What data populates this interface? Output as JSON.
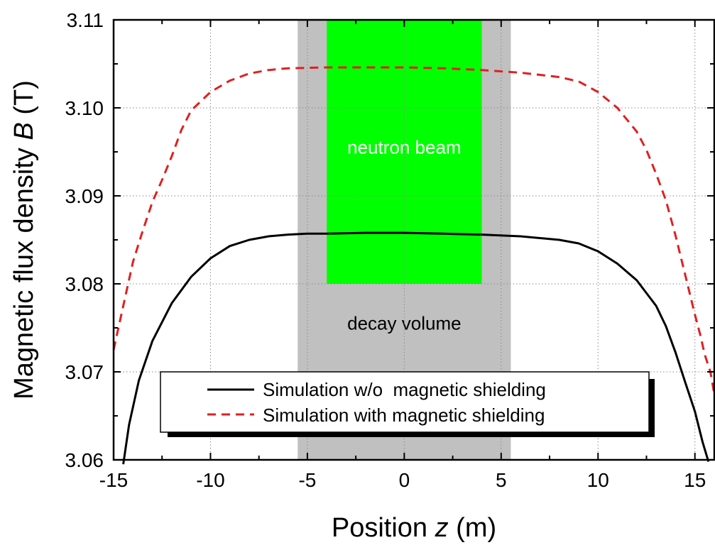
{
  "chart_data": {
    "type": "line",
    "title": "",
    "xlabel_main": "Position ",
    "xlabel_var": "z",
    "xlabel_unit": " (m)",
    "ylabel_main": "Magnetic flux density ",
    "ylabel_var": "B",
    "ylabel_unit": " (T)",
    "xlim": [
      -15,
      16
    ],
    "ylim": [
      3.06,
      3.11
    ],
    "xticks": [
      -15,
      -10,
      -5,
      0,
      5,
      10,
      15
    ],
    "yticks": [
      3.06,
      3.07,
      3.08,
      3.09,
      3.1,
      3.11
    ],
    "ytick_labels": [
      "3.06",
      "3.07",
      "3.08",
      "3.09",
      "3.10",
      "3.11"
    ],
    "grid": true,
    "regions": [
      {
        "name": "decay volume",
        "label": "decay volume",
        "x_range": [
          -5.5,
          5.5
        ],
        "y_range": [
          3.06,
          3.11
        ],
        "color": "#c0c0c0"
      },
      {
        "name": "neutron beam",
        "label": "neutron beam",
        "x_range": [
          -4,
          4
        ],
        "y_range": [
          3.08,
          3.11
        ],
        "color": "#00ff00",
        "label_color": "#ffffff"
      }
    ],
    "series": [
      {
        "name": "Simulation w/o  magnetic shielding",
        "color": "#000000",
        "style": "solid",
        "points": [
          [
            -14.5,
            3.0595
          ],
          [
            -14.2,
            3.064
          ],
          [
            -13.7,
            3.069
          ],
          [
            -13,
            3.0735
          ],
          [
            -12,
            3.0778
          ],
          [
            -11,
            3.0808
          ],
          [
            -10,
            3.0829
          ],
          [
            -9,
            3.0843
          ],
          [
            -8,
            3.085
          ],
          [
            -7,
            3.0854
          ],
          [
            -6,
            3.0856
          ],
          [
            -5,
            3.0857
          ],
          [
            -4,
            3.0857
          ],
          [
            -2,
            3.0858
          ],
          [
            0,
            3.0858
          ],
          [
            2,
            3.0857
          ],
          [
            4,
            3.0856
          ],
          [
            6,
            3.0854
          ],
          [
            8,
            3.085
          ],
          [
            9,
            3.0846
          ],
          [
            10,
            3.0837
          ],
          [
            11,
            3.0823
          ],
          [
            12,
            3.0804
          ],
          [
            13,
            3.0775
          ],
          [
            13.5,
            3.0752
          ],
          [
            14,
            3.0722
          ],
          [
            14.5,
            3.0688
          ],
          [
            15,
            3.0655
          ],
          [
            15.4,
            3.062
          ],
          [
            15.7,
            3.0598
          ]
        ]
      },
      {
        "name": "Simulation with magnetic shielding",
        "color": "#e02020",
        "style": "dashed",
        "points": [
          [
            -15,
            3.0725
          ],
          [
            -14.5,
            3.0775
          ],
          [
            -14,
            3.0825
          ],
          [
            -13.5,
            3.086
          ],
          [
            -13,
            3.0893
          ],
          [
            -12.5,
            3.0918
          ],
          [
            -12,
            3.0945
          ],
          [
            -11.5,
            3.0975
          ],
          [
            -11,
            3.0997
          ],
          [
            -10,
            3.1018
          ],
          [
            -9,
            3.1031
          ],
          [
            -8,
            3.1039
          ],
          [
            -7,
            3.1043
          ],
          [
            -6,
            3.1045
          ],
          [
            -4,
            3.1046
          ],
          [
            -2,
            3.1046
          ],
          [
            0,
            3.1046
          ],
          [
            2,
            3.1045
          ],
          [
            4,
            3.1043
          ],
          [
            6,
            3.104
          ],
          [
            8,
            3.1035
          ],
          [
            9,
            3.103
          ],
          [
            10,
            3.1018
          ],
          [
            11,
            3.1
          ],
          [
            12,
            3.0973
          ],
          [
            12.5,
            3.0952
          ],
          [
            13,
            3.0925
          ],
          [
            13.5,
            3.0895
          ],
          [
            14,
            3.0855
          ],
          [
            14.5,
            3.081
          ],
          [
            15,
            3.0765
          ],
          [
            15.3,
            3.074
          ],
          [
            15.5,
            3.072
          ],
          [
            15.8,
            3.07
          ],
          [
            16,
            3.0675
          ]
        ]
      }
    ],
    "legend_position": "bottom-center"
  }
}
